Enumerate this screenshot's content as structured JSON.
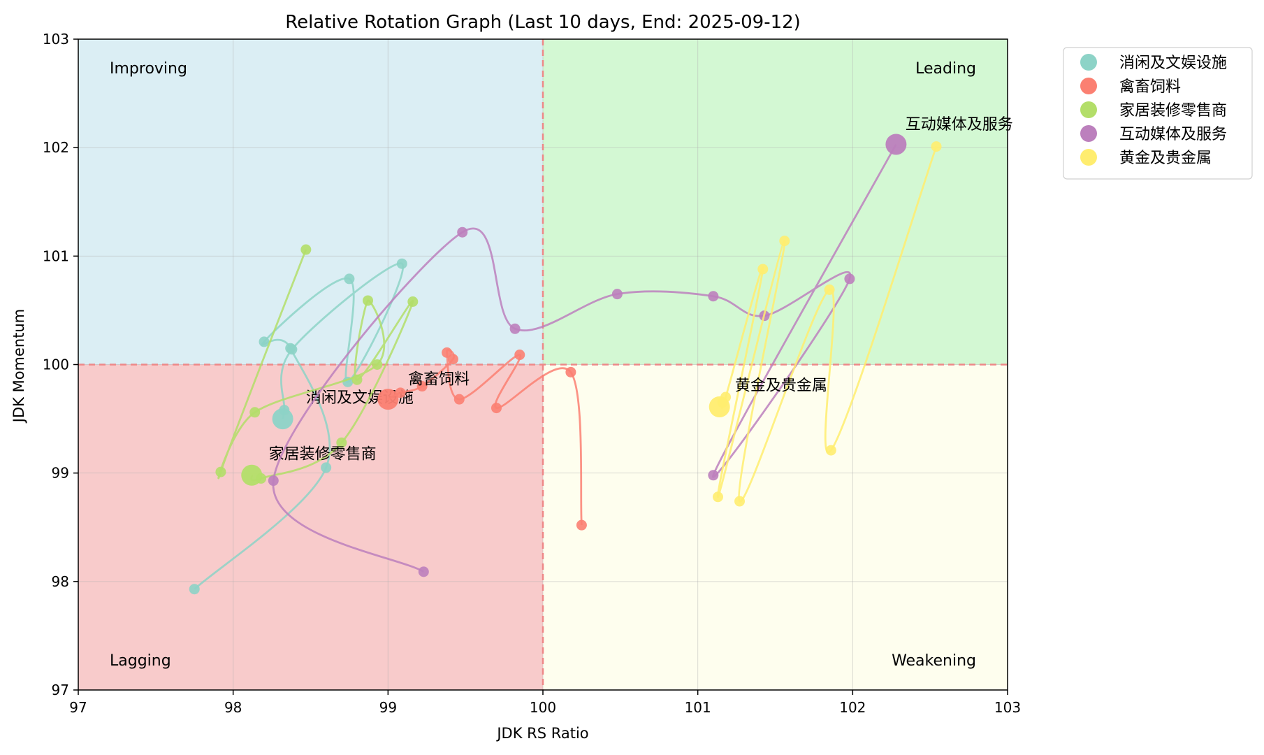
{
  "chart_data": {
    "type": "scatter",
    "title": "Relative Rotation Graph (Last 10 days, End: 2025-09-12)",
    "xlabel": "JDK RS Ratio",
    "ylabel": "JDK Momentum",
    "xlim": [
      97,
      103
    ],
    "ylim": [
      97,
      103
    ],
    "xticks": [
      "97",
      "98",
      "99",
      "100",
      "101",
      "102",
      "103"
    ],
    "yticks": [
      "97",
      "98",
      "99",
      "100",
      "101",
      "102",
      "103"
    ],
    "grid": true,
    "center": [
      100,
      100
    ],
    "legend_position": "outside-top-right",
    "quadrants": [
      {
        "name": "Improving",
        "color": "#dbeef4",
        "x_range": [
          97,
          100
        ],
        "y_range": [
          100,
          103
        ],
        "label_corner": "top-left"
      },
      {
        "name": "Leading",
        "color": "#d3f8d3",
        "x_range": [
          100,
          103
        ],
        "y_range": [
          100,
          103
        ],
        "label_corner": "top-right"
      },
      {
        "name": "Lagging",
        "color": "#f8cbcb",
        "x_range": [
          97,
          100
        ],
        "y_range": [
          97,
          100
        ],
        "label_corner": "bottom-left"
      },
      {
        "name": "Weakening",
        "color": "#fefeee",
        "x_range": [
          100,
          103
        ],
        "y_range": [
          97,
          100
        ],
        "label_corner": "bottom-right"
      }
    ],
    "series": [
      {
        "name": "消闲及文娱设施",
        "color": "#8dd3c7",
        "label_at": [
          98.47,
          99.65
        ],
        "points": [
          [
            97.75,
            97.93
          ],
          [
            98.6,
            99.05
          ],
          [
            98.37,
            100.15
          ],
          [
            98.2,
            100.21
          ],
          [
            98.75,
            100.79
          ],
          [
            98.74,
            99.84
          ],
          [
            99.09,
            100.93
          ],
          [
            98.38,
            100.14
          ],
          [
            98.33,
            99.58
          ],
          [
            98.32,
            99.5
          ]
        ]
      },
      {
        "name": "禽畜饲料",
        "color": "#fb8072",
        "label_at": [
          99.13,
          99.82
        ],
        "points": [
          [
            100.25,
            98.52
          ],
          [
            100.18,
            99.93
          ],
          [
            99.7,
            99.6
          ],
          [
            99.85,
            100.09
          ],
          [
            99.46,
            99.68
          ],
          [
            99.38,
            100.11
          ],
          [
            99.42,
            100.05
          ],
          [
            99.22,
            99.8
          ],
          [
            99.08,
            99.74
          ],
          [
            99.0,
            99.68
          ]
        ]
      },
      {
        "name": "家居装修零售商",
        "color": "#b3de69",
        "label_at": [
          98.23,
          99.13
        ],
        "points": [
          [
            98.47,
            101.06
          ],
          [
            97.92,
            99.01
          ],
          [
            98.14,
            99.56
          ],
          [
            98.93,
            100.0
          ],
          [
            98.87,
            100.59
          ],
          [
            98.8,
            99.86
          ],
          [
            99.16,
            100.58
          ],
          [
            98.7,
            99.28
          ],
          [
            98.18,
            98.95
          ],
          [
            98.12,
            98.98
          ]
        ]
      },
      {
        "name": "互动媒体及服务",
        "color": "#bc80bd",
        "label_at": [
          102.34,
          102.17
        ],
        "points": [
          [
            99.23,
            98.09
          ],
          [
            98.26,
            98.93
          ],
          [
            99.48,
            101.22
          ],
          [
            99.82,
            100.33
          ],
          [
            100.48,
            100.65
          ],
          [
            101.1,
            100.63
          ],
          [
            101.43,
            100.45
          ],
          [
            101.98,
            100.79
          ],
          [
            101.1,
            98.98
          ],
          [
            102.28,
            102.03
          ]
        ]
      },
      {
        "name": "黄金及贵金属",
        "color": "#ffed6f",
        "label_at": [
          101.24,
          99.76
        ],
        "points": [
          [
            102.54,
            102.01
          ],
          [
            101.86,
            99.21
          ],
          [
            101.85,
            100.69
          ],
          [
            101.27,
            98.74
          ],
          [
            101.56,
            101.14
          ],
          [
            101.13,
            98.78
          ],
          [
            101.42,
            100.88
          ],
          [
            101.18,
            99.7
          ],
          [
            101.16,
            99.65
          ],
          [
            101.14,
            99.61
          ]
        ]
      }
    ]
  }
}
